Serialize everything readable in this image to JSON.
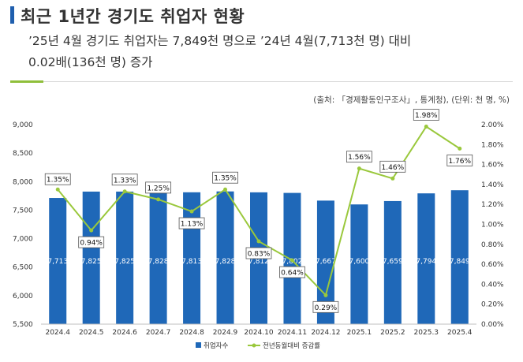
{
  "header": {
    "title": "최근 1년간 경기도 취업자 현황",
    "subtitle_line1": "’25년 4월 경기도 취업자는 7,849천 명으로 ’24년 4월(7,713천 명) 대비",
    "subtitle_line2": "0.02배(136천 명) 증가",
    "source": "(출처: 「경제활동인구조사」, 통계청), (단위: 천 명, %)"
  },
  "colors": {
    "accent_bar": "#1f5fae",
    "bars": "#1f68b8",
    "line": "#9ac83c",
    "rule_accent": "#8fbf3a"
  },
  "chart_data": {
    "type": "bar",
    "categories": [
      "2024.4",
      "2024.5",
      "2024.6",
      "2024.7",
      "2024.8",
      "2024.9",
      "2024.10",
      "2024.11",
      "2024.12",
      "2025.1",
      "2025.2",
      "2025.3",
      "2025.4"
    ],
    "series": [
      {
        "name": "취업자수",
        "type": "bar",
        "axis": "left",
        "values": [
          7713,
          7825,
          7825,
          7828,
          7813,
          7828,
          7812,
          7802,
          7667,
          7600,
          7659,
          7794,
          7849
        ],
        "labels": [
          "7,713",
          "7,825",
          "7,825",
          "7,828",
          "7,813",
          "7,828",
          "7,812",
          "7,802",
          "7,667",
          "7,600",
          "7,659",
          "7,794",
          "7,849"
        ]
      },
      {
        "name": "전년동월대비 증감률",
        "type": "line",
        "axis": "right",
        "values": [
          1.35,
          0.94,
          1.33,
          1.25,
          1.13,
          1.35,
          0.83,
          0.64,
          0.29,
          1.56,
          1.46,
          1.98,
          1.76
        ],
        "labels": [
          "1.35%",
          "0.94%",
          "1.33%",
          "1.25%",
          "1.13%",
          "1.35%",
          "0.83%",
          "0.64%",
          "0.29%",
          "1.56%",
          "1.46%",
          "1.98%",
          "1.76%"
        ]
      }
    ],
    "ylim": [
      5500,
      9000
    ],
    "y_ticks": [
      "5,500",
      "6,000",
      "6,500",
      "7,000",
      "7,500",
      "8,000",
      "8,500",
      "9,000"
    ],
    "y2lim": [
      0,
      2
    ],
    "y2_ticks": [
      "0.00%",
      "0.20%",
      "0.40%",
      "0.60%",
      "0.80%",
      "1.00%",
      "1.20%",
      "1.40%",
      "1.60%",
      "1.80%",
      "2.00%"
    ],
    "grid": false,
    "legend": "bottom"
  }
}
